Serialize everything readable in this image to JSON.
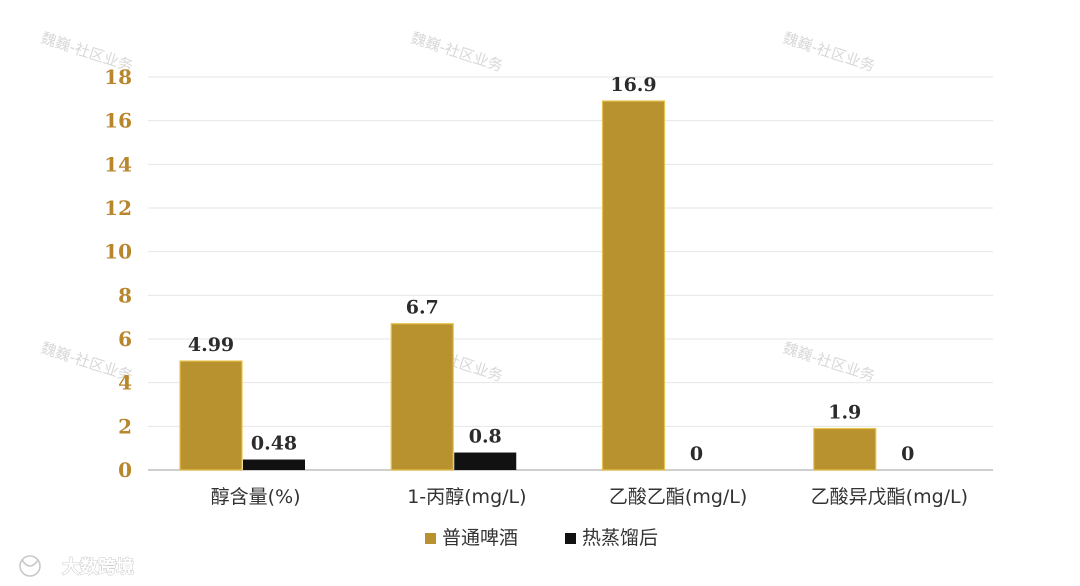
{
  "chart_data": {
    "type": "bar",
    "categories": [
      "醇含量(%)",
      "1-丙醇(mg/L)",
      "乙酸乙酯(mg/L)",
      "乙酸异戊酯(mg/L)"
    ],
    "series": [
      {
        "name": "普通啤酒",
        "values": [
          4.99,
          6.7,
          16.9,
          1.9
        ],
        "color": "#b8922f"
      },
      {
        "name": "热蒸馏后",
        "values": [
          0.48,
          0.8,
          0,
          0
        ],
        "color": "#111111"
      }
    ],
    "data_labels": [
      [
        "4.99",
        "6.7",
        "16.9",
        "1.9"
      ],
      [
        "0.48",
        "0.8",
        "0",
        "0"
      ]
    ],
    "yticks": [
      "0",
      "2",
      "4",
      "6",
      "8",
      "10",
      "12",
      "14",
      "16",
      "18"
    ],
    "ylim": [
      0,
      18
    ],
    "grid": true,
    "legend_position": "bottom-center",
    "title": "",
    "xlabel": "",
    "ylabel": ""
  },
  "watermarks": [
    "魏巍-社区业务",
    "魏巍-社区业务",
    "魏巍-社区业务",
    "魏巍-社区业务",
    "魏巍-社区业务",
    "魏巍-社区业务"
  ],
  "brand": {
    "text": "大数跨境"
  },
  "colors": {
    "tick": "#b8862b",
    "grid": "#e6e6e6",
    "axis": "#bfbfbf"
  }
}
